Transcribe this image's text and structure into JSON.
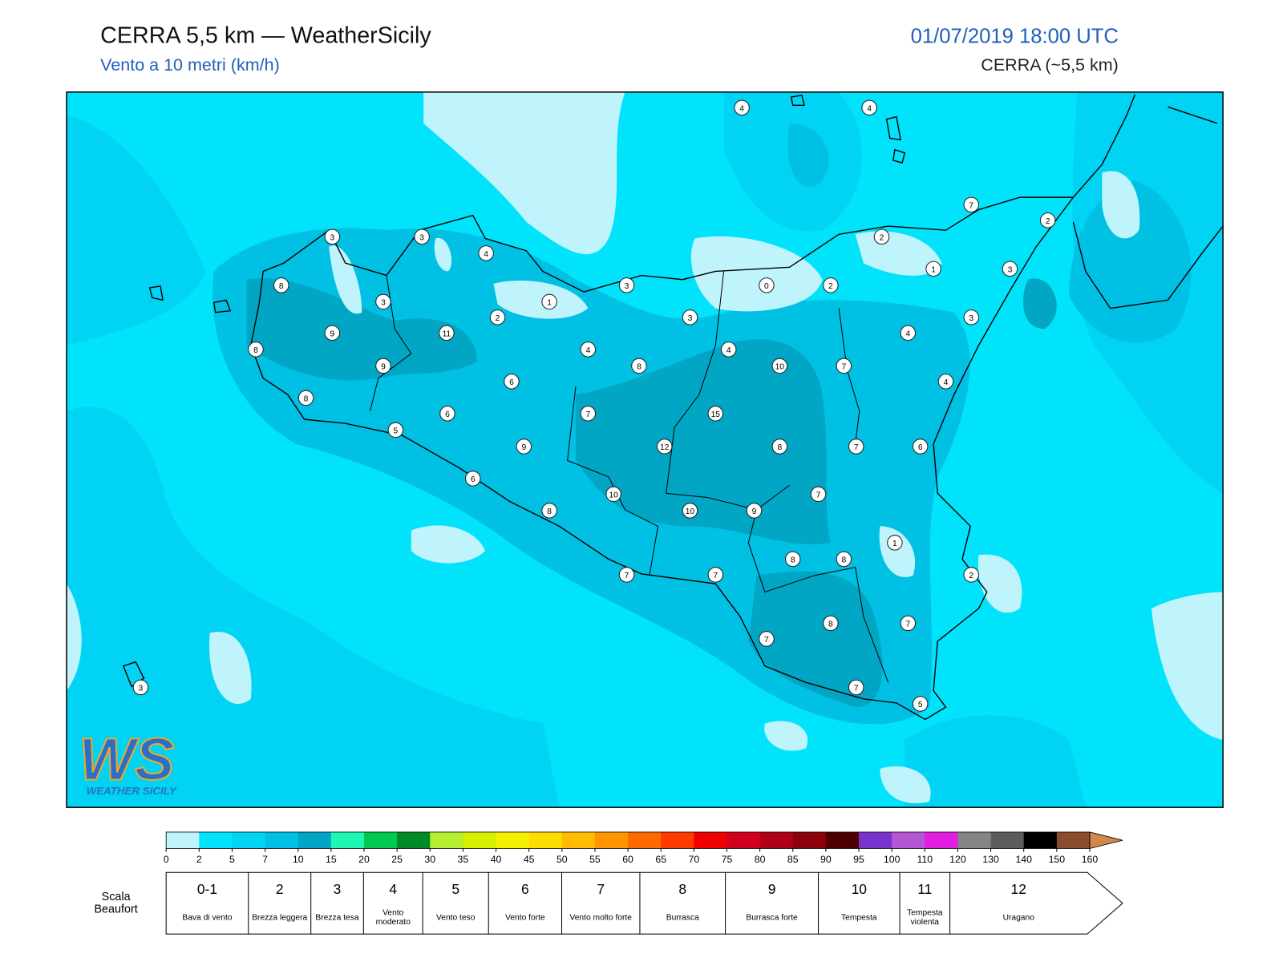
{
  "header": {
    "title": "CERRA 5,5 km — WeatherSicily",
    "subtitle": "Vento a 10 metri (km/h)",
    "datetime": "01/07/2019 18:00 UTC",
    "model": "CERRA (~5,5 km)"
  },
  "station_values": [
    4,
    4,
    7,
    2,
    2,
    1,
    3,
    3,
    3,
    4,
    8,
    3,
    1,
    3,
    0,
    2,
    2,
    3,
    3,
    9,
    11,
    4,
    8,
    4,
    4,
    9,
    8,
    10,
    7,
    6,
    4,
    8,
    6,
    7,
    15,
    5,
    9,
    12,
    8,
    7,
    6,
    6,
    10,
    7,
    8,
    10,
    9,
    1,
    8,
    8,
    7,
    7,
    2,
    8,
    7,
    7,
    3,
    7,
    5
  ],
  "colorbar": {
    "ticks": [
      0,
      2,
      5,
      7,
      10,
      15,
      20,
      25,
      30,
      35,
      40,
      45,
      50,
      55,
      60,
      65,
      70,
      75,
      80,
      85,
      90,
      95,
      100,
      110,
      120,
      130,
      140,
      150,
      160
    ],
    "colors": [
      "#c0f4fc",
      "#00e3fb",
      "#00d3f3",
      "#00c0e3",
      "#00a6c4",
      "#1ef7b4",
      "#00c850",
      "#008a28",
      "#b6ee30",
      "#d6f000",
      "#f4f000",
      "#ffdc00",
      "#ffbc00",
      "#ff9600",
      "#ff6a00",
      "#ff3a00",
      "#ee0000",
      "#d2001e",
      "#b00018",
      "#8c000c",
      "#4c0000",
      "#7a32cc",
      "#b456d4",
      "#e41ee0",
      "#848484",
      "#5c5c5c",
      "#000000",
      "#8a4c2c",
      "#d2874c"
    ]
  },
  "beaufort": {
    "title": "Scala Beaufort",
    "levels": [
      {
        "force": "0-1",
        "label": "Bava di vento"
      },
      {
        "force": "2",
        "label": "Brezza leggera"
      },
      {
        "force": "3",
        "label": "Brezza tesa"
      },
      {
        "force": "4",
        "label": "Vento moderato"
      },
      {
        "force": "5",
        "label": "Vento teso"
      },
      {
        "force": "6",
        "label": "Vento forte"
      },
      {
        "force": "7",
        "label": "Vento molto forte"
      },
      {
        "force": "8",
        "label": "Burrasca"
      },
      {
        "force": "9",
        "label": "Burrasca forte"
      },
      {
        "force": "10",
        "label": "Tempesta"
      },
      {
        "force": "11",
        "label": "Tempesta violenta"
      },
      {
        "force": "12",
        "label": "Uragano"
      }
    ]
  },
  "logo": {
    "mark": "WS",
    "name": "WEATHER SICILY"
  }
}
